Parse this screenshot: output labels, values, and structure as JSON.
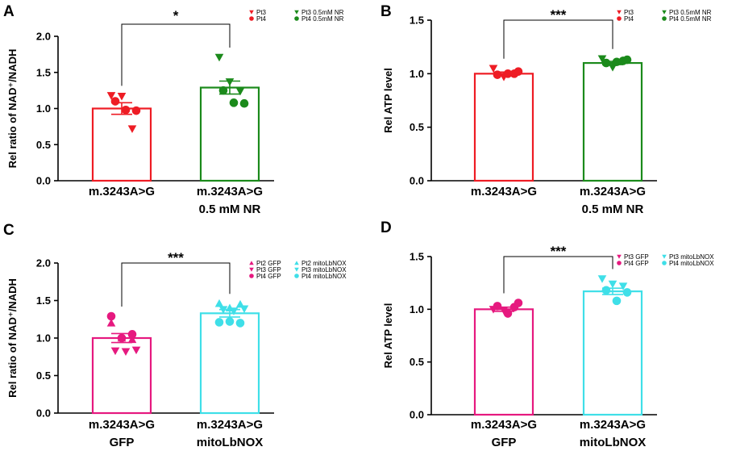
{
  "chart_data": [
    {
      "panel": "A",
      "type": "bar",
      "ylabel": "Rel ratio of NAD⁺/NADH",
      "ylim": [
        0,
        2.0
      ],
      "yticks": [
        "0.0",
        "0.5",
        "1.0",
        "1.5",
        "2.0"
      ],
      "categories": [
        {
          "line1": "m.3243A>G",
          "line2": "",
          "mean": 1.0,
          "sem": 0.08,
          "color": "#ee1c24",
          "points": [
            {
              "v": 1.18,
              "shape": "tri-down",
              "color": "#ee1c24"
            },
            {
              "v": 1.17,
              "shape": "tri-down",
              "color": "#ee1c24"
            },
            {
              "v": 0.72,
              "shape": "tri-down",
              "color": "#ee1c24"
            },
            {
              "v": 1.1,
              "shape": "circle",
              "color": "#ee1c24"
            },
            {
              "v": 0.98,
              "shape": "circle",
              "color": "#ee1c24"
            },
            {
              "v": 0.97,
              "shape": "circle",
              "color": "#ee1c24"
            }
          ]
        },
        {
          "line1": "m.3243A>G",
          "line2": "0.5 mM NR",
          "mean": 1.29,
          "sem": 0.09,
          "color": "#1b8a1b",
          "points": [
            {
              "v": 1.71,
              "shape": "tri-down",
              "color": "#1b8a1b"
            },
            {
              "v": 1.37,
              "shape": "tri-down",
              "color": "#1b8a1b"
            },
            {
              "v": 1.24,
              "shape": "tri-down",
              "color": "#1b8a1b"
            },
            {
              "v": 1.25,
              "shape": "circle",
              "color": "#1b8a1b"
            },
            {
              "v": 1.08,
              "shape": "circle",
              "color": "#1b8a1b"
            },
            {
              "v": 1.07,
              "shape": "circle",
              "color": "#1b8a1b"
            }
          ]
        }
      ],
      "significance": "*",
      "legend": [
        {
          "label": "Pt3",
          "shape": "tri-down",
          "color": "#ee1c24"
        },
        {
          "label": "Pt3 0.5mM NR",
          "shape": "tri-down",
          "color": "#1b8a1b"
        },
        {
          "label": "Pt4",
          "shape": "circle",
          "color": "#ee1c24"
        },
        {
          "label": "Pt4 0.5mM NR",
          "shape": "circle",
          "color": "#1b8a1b"
        }
      ]
    },
    {
      "panel": "B",
      "type": "bar",
      "ylabel": "Rel ATP level",
      "ylim": [
        0,
        1.5
      ],
      "yticks": [
        "0.0",
        "0.5",
        "1.0",
        "1.5"
      ],
      "categories": [
        {
          "line1": "m.3243A>G",
          "line2": "",
          "mean": 1.0,
          "sem": 0.015,
          "color": "#ee1c24",
          "points": [
            {
              "v": 1.05,
              "shape": "tri-down",
              "color": "#ee1c24"
            },
            {
              "v": 0.97,
              "shape": "tri-down",
              "color": "#ee1c24"
            },
            {
              "v": 1.0,
              "shape": "circle",
              "color": "#ee1c24"
            },
            {
              "v": 0.99,
              "shape": "circle",
              "color": "#ee1c24"
            },
            {
              "v": 1.0,
              "shape": "circle",
              "color": "#ee1c24"
            },
            {
              "v": 1.02,
              "shape": "circle",
              "color": "#ee1c24"
            }
          ]
        },
        {
          "line1": "m.3243A>G",
          "line2": "0.5 mM NR",
          "mean": 1.1,
          "sem": 0.015,
          "color": "#1b8a1b",
          "points": [
            {
              "v": 1.14,
              "shape": "tri-down",
              "color": "#1b8a1b"
            },
            {
              "v": 1.06,
              "shape": "tri-down",
              "color": "#1b8a1b"
            },
            {
              "v": 1.12,
              "shape": "circle",
              "color": "#1b8a1b"
            },
            {
              "v": 1.1,
              "shape": "circle",
              "color": "#1b8a1b"
            },
            {
              "v": 1.11,
              "shape": "circle",
              "color": "#1b8a1b"
            },
            {
              "v": 1.13,
              "shape": "circle",
              "color": "#1b8a1b"
            }
          ]
        }
      ],
      "significance": "***",
      "legend": [
        {
          "label": "Pt3",
          "shape": "tri-down",
          "color": "#ee1c24"
        },
        {
          "label": "Pt3 0.5mM NR",
          "shape": "tri-down",
          "color": "#1b8a1b"
        },
        {
          "label": "Pt4",
          "shape": "circle",
          "color": "#ee1c24"
        },
        {
          "label": "Pt4 0.5mM NR",
          "shape": "circle",
          "color": "#1b8a1b"
        }
      ]
    },
    {
      "panel": "C",
      "type": "bar",
      "ylabel": "Rel ratio of NAD⁺/NADH",
      "ylim": [
        0,
        2.0
      ],
      "yticks": [
        "0.0",
        "0.5",
        "1.0",
        "1.5",
        "2.0"
      ],
      "categories": [
        {
          "line1": "m.3243A>G",
          "line2": "GFP",
          "mean": 1.0,
          "sem": 0.06,
          "color": "#e6197f",
          "points": [
            {
              "v": 1.2,
              "shape": "tri-up",
              "color": "#e6197f"
            },
            {
              "v": 1.0,
              "shape": "tri-up",
              "color": "#e6197f"
            },
            {
              "v": 0.98,
              "shape": "tri-up",
              "color": "#e6197f"
            },
            {
              "v": 0.83,
              "shape": "tri-down",
              "color": "#e6197f"
            },
            {
              "v": 0.82,
              "shape": "tri-down",
              "color": "#e6197f"
            },
            {
              "v": 0.84,
              "shape": "tri-down",
              "color": "#e6197f"
            },
            {
              "v": 1.29,
              "shape": "circle",
              "color": "#e6197f"
            },
            {
              "v": 1.0,
              "shape": "circle",
              "color": "#e6197f"
            },
            {
              "v": 1.05,
              "shape": "circle",
              "color": "#e6197f"
            }
          ]
        },
        {
          "line1": "m.3243A>G",
          "line2": "mitoLbNOX",
          "mean": 1.33,
          "sem": 0.05,
          "color": "#3fdfe8",
          "points": [
            {
              "v": 1.46,
              "shape": "tri-up",
              "color": "#3fdfe8"
            },
            {
              "v": 1.4,
              "shape": "tri-up",
              "color": "#3fdfe8"
            },
            {
              "v": 1.45,
              "shape": "tri-up",
              "color": "#3fdfe8"
            },
            {
              "v": 1.38,
              "shape": "tri-down",
              "color": "#3fdfe8"
            },
            {
              "v": 1.36,
              "shape": "tri-down",
              "color": "#3fdfe8"
            },
            {
              "v": 1.39,
              "shape": "tri-down",
              "color": "#3fdfe8"
            },
            {
              "v": 1.21,
              "shape": "circle",
              "color": "#3fdfe8"
            },
            {
              "v": 1.22,
              "shape": "circle",
              "color": "#3fdfe8"
            },
            {
              "v": 1.2,
              "shape": "circle",
              "color": "#3fdfe8"
            }
          ]
        }
      ],
      "significance": "***",
      "legend": [
        {
          "label": "Pt2 GFP",
          "shape": "tri-up",
          "color": "#e6197f"
        },
        {
          "label": "Pt2 mitoLbNOX",
          "shape": "tri-up",
          "color": "#3fdfe8"
        },
        {
          "label": "Pt3 GFP",
          "shape": "tri-down",
          "color": "#e6197f"
        },
        {
          "label": "Pt3 mitoLbNOX",
          "shape": "tri-down",
          "color": "#3fdfe8"
        },
        {
          "label": "Pt4 GFP",
          "shape": "circle",
          "color": "#e6197f"
        },
        {
          "label": "Pt4 mitoLbNOX",
          "shape": "circle",
          "color": "#3fdfe8"
        }
      ]
    },
    {
      "panel": "D",
      "type": "bar",
      "ylabel": "Rel ATP level",
      "ylim": [
        0,
        1.5
      ],
      "yticks": [
        "0.0",
        "0.5",
        "1.0",
        "1.5"
      ],
      "categories": [
        {
          "line1": "m.3243A>G",
          "line2": "GFP",
          "mean": 1.0,
          "sem": 0.02,
          "color": "#e6197f",
          "points": [
            {
              "v": 1.0,
              "shape": "tri-down",
              "color": "#e6197f"
            },
            {
              "v": 0.99,
              "shape": "tri-down",
              "color": "#e6197f"
            },
            {
              "v": 1.02,
              "shape": "circle",
              "color": "#e6197f"
            },
            {
              "v": 1.03,
              "shape": "circle",
              "color": "#e6197f"
            },
            {
              "v": 0.96,
              "shape": "circle",
              "color": "#e6197f"
            },
            {
              "v": 1.06,
              "shape": "circle",
              "color": "#e6197f"
            }
          ]
        },
        {
          "line1": "m.3243A>G",
          "line2": "mitoLbNOX",
          "mean": 1.17,
          "sem": 0.03,
          "color": "#3fdfe8",
          "points": [
            {
              "v": 1.29,
              "shape": "tri-down",
              "color": "#3fdfe8"
            },
            {
              "v": 1.24,
              "shape": "tri-down",
              "color": "#3fdfe8"
            },
            {
              "v": 1.22,
              "shape": "tri-down",
              "color": "#3fdfe8"
            },
            {
              "v": 1.18,
              "shape": "circle",
              "color": "#3fdfe8"
            },
            {
              "v": 1.08,
              "shape": "circle",
              "color": "#3fdfe8"
            },
            {
              "v": 1.16,
              "shape": "circle",
              "color": "#3fdfe8"
            }
          ]
        }
      ],
      "significance": "***",
      "legend": [
        {
          "label": "Pt3 GFP",
          "shape": "tri-down",
          "color": "#e6197f"
        },
        {
          "label": "Pt3 mitoLbNOX",
          "shape": "tri-down",
          "color": "#3fdfe8"
        },
        {
          "label": "Pt4 GFP",
          "shape": "circle",
          "color": "#e6197f"
        },
        {
          "label": "Pt4 mitoLbNOX",
          "shape": "circle",
          "color": "#3fdfe8"
        }
      ]
    }
  ]
}
